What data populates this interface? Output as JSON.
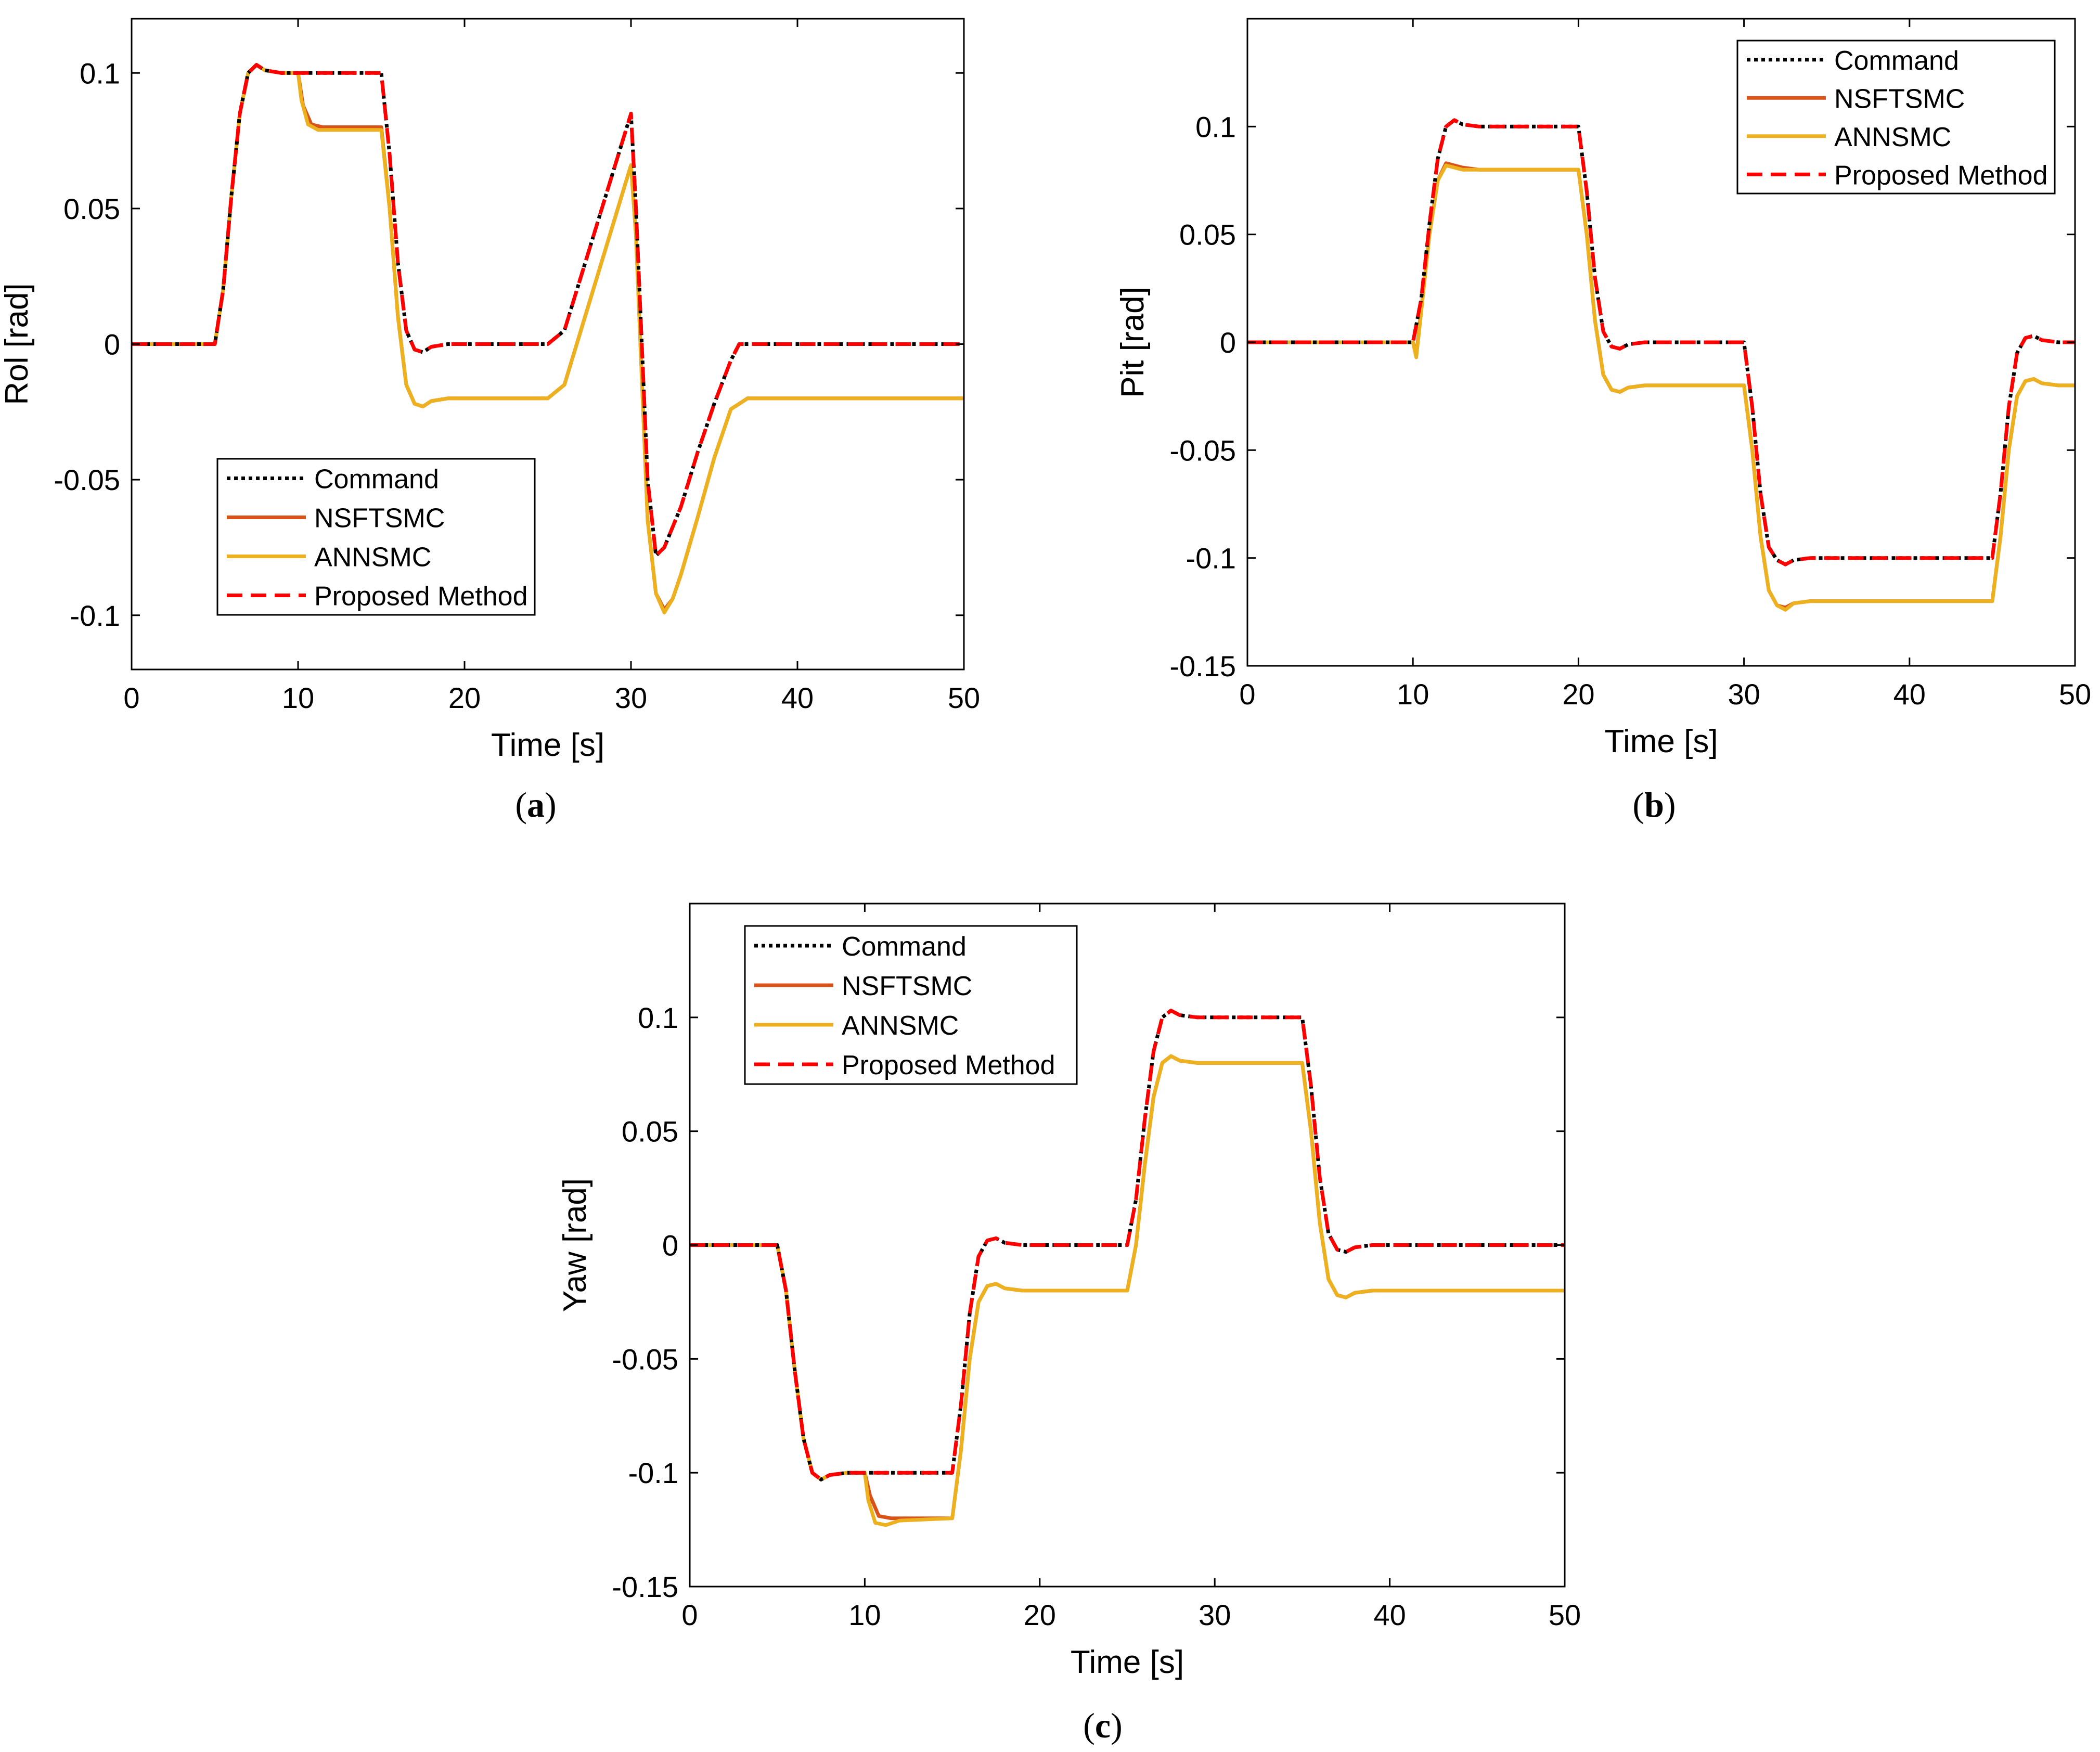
{
  "chart_data": [
    {
      "type": "line",
      "panel_label": "a",
      "xlabel": "Time [s]",
      "ylabel": "Rol [rad]",
      "xlim": [
        0,
        50
      ],
      "ylim": [
        -0.12,
        0.12
      ],
      "xticks": [
        0,
        10,
        20,
        30,
        40,
        50
      ],
      "yticks": [
        -0.1,
        -0.05,
        0,
        0.05,
        0.1
      ],
      "ytick_labels": [
        "-0.1",
        "-0.05",
        "0",
        "0.05",
        "0.1"
      ],
      "legend_position": "bottom-left",
      "series": [
        {
          "name": "Command",
          "color": "#000000",
          "style": "dotted",
          "x": [
            0,
            5,
            5.5,
            6,
            6.5,
            7,
            7.5,
            8,
            9,
            10,
            15,
            15.5,
            16,
            16.5,
            17,
            17.5,
            18,
            19,
            20,
            25,
            26,
            30,
            30.3,
            31,
            31.5,
            32,
            33,
            34,
            35,
            36,
            36.5,
            37,
            40,
            50
          ],
          "y": [
            0,
            0,
            0.02,
            0.055,
            0.085,
            0.1,
            0.103,
            0.101,
            0.1,
            0.1,
            0.1,
            0.07,
            0.03,
            0.005,
            -0.002,
            -0.003,
            -0.001,
            0,
            0,
            0,
            0.005,
            0.085,
            0.05,
            -0.05,
            -0.078,
            -0.075,
            -0.06,
            -0.04,
            -0.022,
            -0.006,
            0,
            0,
            0,
            0
          ]
        },
        {
          "name": "NSFTSMC",
          "color": "#d95319",
          "style": "solid",
          "x": [
            0,
            5,
            5.5,
            6,
            6.5,
            7,
            7.5,
            8,
            9,
            10,
            10.3,
            10.8,
            11.5,
            12,
            15,
            15.5,
            16,
            16.5,
            17,
            17.5,
            18,
            19,
            20,
            25,
            26,
            30,
            30.3,
            31,
            31.5,
            32,
            32.5,
            33,
            34,
            35,
            36,
            37,
            40,
            50
          ],
          "y": [
            0,
            0,
            0.02,
            0.055,
            0.085,
            0.1,
            0.103,
            0.101,
            0.1,
            0.1,
            0.088,
            0.081,
            0.08,
            0.08,
            0.08,
            0.05,
            0.01,
            -0.015,
            -0.022,
            -0.023,
            -0.021,
            -0.02,
            -0.02,
            -0.02,
            -0.015,
            0.066,
            0.04,
            -0.065,
            -0.092,
            -0.098,
            -0.094,
            -0.085,
            -0.064,
            -0.042,
            -0.024,
            -0.02,
            -0.02,
            -0.02
          ]
        },
        {
          "name": "ANNSMC",
          "color": "#edb120",
          "style": "solid",
          "x": [
            0,
            5,
            5.5,
            6,
            6.5,
            7,
            7.5,
            8,
            9,
            10,
            10.2,
            10.6,
            11.2,
            12,
            15,
            15.5,
            16,
            16.5,
            17,
            17.5,
            18,
            19,
            20,
            25,
            26,
            30,
            30.3,
            31,
            31.5,
            32,
            32.5,
            33,
            34,
            35,
            36,
            37,
            40,
            50
          ],
          "y": [
            0,
            0,
            0.02,
            0.055,
            0.085,
            0.1,
            0.103,
            0.101,
            0.1,
            0.1,
            0.09,
            0.081,
            0.079,
            0.079,
            0.079,
            0.05,
            0.01,
            -0.015,
            -0.022,
            -0.023,
            -0.021,
            -0.02,
            -0.02,
            -0.02,
            -0.015,
            0.066,
            0.04,
            -0.065,
            -0.092,
            -0.099,
            -0.094,
            -0.085,
            -0.064,
            -0.042,
            -0.024,
            -0.02,
            -0.02,
            -0.02
          ]
        },
        {
          "name": "Proposed Method",
          "color": "#ff0000",
          "style": "dashed",
          "x": [
            0,
            5,
            5.5,
            6,
            6.5,
            7,
            7.5,
            8,
            9,
            10,
            15,
            15.5,
            16,
            16.5,
            17,
            17.5,
            18,
            19,
            20,
            25,
            26,
            30,
            30.3,
            31,
            31.5,
            32,
            33,
            34,
            35,
            36,
            36.5,
            37,
            40,
            50
          ],
          "y": [
            0,
            0,
            0.02,
            0.055,
            0.085,
            0.1,
            0.103,
            0.101,
            0.1,
            0.1,
            0.1,
            0.07,
            0.03,
            0.005,
            -0.002,
            -0.003,
            -0.001,
            0,
            0,
            0,
            0.005,
            0.085,
            0.05,
            -0.05,
            -0.078,
            -0.075,
            -0.06,
            -0.04,
            -0.022,
            -0.006,
            0,
            0,
            0,
            0
          ]
        }
      ]
    },
    {
      "type": "line",
      "panel_label": "b",
      "xlabel": "Time [s]",
      "ylabel": "Pit [rad]",
      "xlim": [
        0,
        50
      ],
      "ylim": [
        -0.15,
        0.15
      ],
      "xticks": [
        0,
        10,
        20,
        30,
        40,
        50
      ],
      "yticks": [
        -0.15,
        -0.1,
        -0.05,
        0,
        0.05,
        0.1
      ],
      "ytick_labels": [
        "-0.15",
        "-0.1",
        "-0.05",
        "0",
        "0.05",
        "0.1"
      ],
      "legend_position": "top-right",
      "series": [
        {
          "name": "Command",
          "color": "#000000",
          "style": "dotted",
          "x": [
            0,
            10,
            10.5,
            11,
            11.5,
            12,
            12.5,
            13,
            14,
            15,
            20,
            20.5,
            21,
            21.5,
            22,
            22.5,
            23,
            24,
            25,
            30,
            30.5,
            31,
            31.5,
            32,
            32.5,
            33,
            34,
            35,
            45,
            45.5,
            46,
            46.5,
            47,
            47.5,
            48,
            49,
            50
          ],
          "y": [
            0,
            0,
            0.02,
            0.055,
            0.085,
            0.1,
            0.103,
            0.101,
            0.1,
            0.1,
            0.1,
            0.07,
            0.03,
            0.005,
            -0.002,
            -0.003,
            -0.001,
            0,
            0,
            0,
            -0.03,
            -0.07,
            -0.095,
            -0.101,
            -0.103,
            -0.101,
            -0.1,
            -0.1,
            -0.1,
            -0.07,
            -0.03,
            -0.005,
            0.002,
            0.003,
            0.001,
            0,
            0
          ]
        },
        {
          "name": "NSFTSMC",
          "color": "#d95319",
          "style": "solid",
          "x": [
            0,
            10,
            10.2,
            10.5,
            11,
            11.5,
            12,
            12.5,
            13,
            14,
            15,
            20,
            20.5,
            21,
            21.5,
            22,
            22.5,
            23,
            24,
            25,
            30,
            30.5,
            31,
            31.5,
            32,
            32.5,
            33,
            34,
            35,
            45,
            45.5,
            46,
            46.5,
            47,
            47.5,
            48,
            49,
            50
          ],
          "y": [
            0,
            0,
            -0.006,
            0.015,
            0.05,
            0.075,
            0.083,
            0.082,
            0.081,
            0.08,
            0.08,
            0.08,
            0.05,
            0.01,
            -0.015,
            -0.022,
            -0.023,
            -0.021,
            -0.02,
            -0.02,
            -0.02,
            -0.05,
            -0.09,
            -0.115,
            -0.122,
            -0.123,
            -0.121,
            -0.12,
            -0.12,
            -0.12,
            -0.09,
            -0.05,
            -0.025,
            -0.018,
            -0.017,
            -0.019,
            -0.02,
            -0.02
          ]
        },
        {
          "name": "ANNSMC",
          "color": "#edb120",
          "style": "solid",
          "x": [
            0,
            10,
            10.2,
            10.5,
            11,
            11.5,
            12,
            12.5,
            13,
            14,
            15,
            20,
            20.5,
            21,
            21.5,
            22,
            22.5,
            23,
            24,
            25,
            30,
            30.5,
            31,
            31.5,
            32,
            32.5,
            33,
            34,
            35,
            45,
            45.5,
            46,
            46.5,
            47,
            47.5,
            48,
            49,
            50
          ],
          "y": [
            0,
            0,
            -0.007,
            0.014,
            0.05,
            0.075,
            0.082,
            0.081,
            0.08,
            0.08,
            0.08,
            0.08,
            0.05,
            0.01,
            -0.015,
            -0.022,
            -0.023,
            -0.021,
            -0.02,
            -0.02,
            -0.02,
            -0.05,
            -0.09,
            -0.115,
            -0.122,
            -0.124,
            -0.121,
            -0.12,
            -0.12,
            -0.12,
            -0.09,
            -0.05,
            -0.025,
            -0.018,
            -0.017,
            -0.019,
            -0.02,
            -0.02
          ]
        },
        {
          "name": "Proposed Method",
          "color": "#ff0000",
          "style": "dashed",
          "x": [
            0,
            10,
            10.5,
            11,
            11.5,
            12,
            12.5,
            13,
            14,
            15,
            20,
            20.5,
            21,
            21.5,
            22,
            22.5,
            23,
            24,
            25,
            30,
            30.5,
            31,
            31.5,
            32,
            32.5,
            33,
            34,
            35,
            45,
            45.5,
            46,
            46.5,
            47,
            47.5,
            48,
            49,
            50
          ],
          "y": [
            0,
            0,
            0.02,
            0.055,
            0.085,
            0.1,
            0.103,
            0.101,
            0.1,
            0.1,
            0.1,
            0.07,
            0.03,
            0.005,
            -0.002,
            -0.003,
            -0.001,
            0,
            0,
            0,
            -0.03,
            -0.07,
            -0.095,
            -0.101,
            -0.103,
            -0.101,
            -0.1,
            -0.1,
            -0.1,
            -0.07,
            -0.03,
            -0.005,
            0.002,
            0.003,
            0.001,
            0,
            0
          ]
        }
      ]
    },
    {
      "type": "line",
      "panel_label": "c",
      "xlabel": "Time [s]",
      "ylabel": "Yaw [rad]",
      "xlim": [
        0,
        50
      ],
      "ylim": [
        -0.15,
        0.15
      ],
      "xticks": [
        0,
        10,
        20,
        30,
        40,
        50
      ],
      "yticks": [
        -0.15,
        -0.1,
        -0.05,
        0,
        0.05,
        0.1
      ],
      "ytick_labels": [
        "-0.15",
        "-0.1",
        "-0.05",
        "0",
        "0.05",
        "0.1"
      ],
      "legend_position": "top-left",
      "series": [
        {
          "name": "Command",
          "color": "#000000",
          "style": "dotted",
          "x": [
            0,
            5,
            5.5,
            6,
            6.5,
            7,
            7.5,
            8,
            9,
            10,
            15,
            15.5,
            16,
            16.5,
            17,
            17.5,
            18,
            19,
            20,
            25,
            25.5,
            26,
            26.5,
            27,
            27.5,
            28,
            29,
            30,
            35,
            35.5,
            36,
            36.5,
            37,
            37.5,
            38,
            39,
            40,
            50
          ],
          "y": [
            0,
            0,
            -0.02,
            -0.055,
            -0.085,
            -0.1,
            -0.103,
            -0.101,
            -0.1,
            -0.1,
            -0.1,
            -0.07,
            -0.03,
            -0.005,
            0.002,
            0.003,
            0.001,
            0,
            0,
            0,
            0.02,
            0.055,
            0.085,
            0.1,
            0.103,
            0.101,
            0.1,
            0.1,
            0.1,
            0.07,
            0.03,
            0.005,
            -0.002,
            -0.003,
            -0.001,
            0,
            0,
            0
          ]
        },
        {
          "name": "NSFTSMC",
          "color": "#d95319",
          "style": "solid",
          "x": [
            0,
            5,
            5.5,
            6,
            6.5,
            7,
            7.5,
            8,
            9,
            10,
            10.3,
            10.8,
            11.5,
            12,
            15,
            15.5,
            16,
            16.5,
            17,
            17.5,
            18,
            19,
            20,
            25,
            25.5,
            26,
            26.5,
            27,
            27.5,
            28,
            29,
            30,
            35,
            35.5,
            36,
            36.5,
            37,
            37.5,
            38,
            39,
            40,
            50
          ],
          "y": [
            0,
            0,
            -0.02,
            -0.055,
            -0.085,
            -0.1,
            -0.103,
            -0.101,
            -0.1,
            -0.1,
            -0.11,
            -0.119,
            -0.12,
            -0.12,
            -0.12,
            -0.09,
            -0.05,
            -0.025,
            -0.018,
            -0.017,
            -0.019,
            -0.02,
            -0.02,
            -0.02,
            0.0,
            0.035,
            0.065,
            0.08,
            0.083,
            0.081,
            0.08,
            0.08,
            0.08,
            0.05,
            0.01,
            -0.015,
            -0.022,
            -0.023,
            -0.021,
            -0.02,
            -0.02,
            -0.02
          ]
        },
        {
          "name": "ANNSMC",
          "color": "#edb120",
          "style": "solid",
          "x": [
            0,
            5,
            5.5,
            6,
            6.5,
            7,
            7.5,
            8,
            9,
            10,
            10.2,
            10.6,
            11.2,
            12,
            15,
            15.5,
            16,
            16.5,
            17,
            17.5,
            18,
            19,
            20,
            25,
            25.5,
            26,
            26.5,
            27,
            27.5,
            28,
            29,
            30,
            35,
            35.5,
            36,
            36.5,
            37,
            37.5,
            38,
            39,
            40,
            50
          ],
          "y": [
            0,
            0,
            -0.02,
            -0.055,
            -0.085,
            -0.1,
            -0.103,
            -0.101,
            -0.1,
            -0.1,
            -0.112,
            -0.122,
            -0.123,
            -0.121,
            -0.12,
            -0.09,
            -0.05,
            -0.025,
            -0.018,
            -0.017,
            -0.019,
            -0.02,
            -0.02,
            -0.02,
            0.0,
            0.035,
            0.065,
            0.08,
            0.083,
            0.081,
            0.08,
            0.08,
            0.08,
            0.05,
            0.01,
            -0.015,
            -0.022,
            -0.023,
            -0.021,
            -0.02,
            -0.02,
            -0.02
          ]
        },
        {
          "name": "Proposed Method",
          "color": "#ff0000",
          "style": "dashed",
          "x": [
            0,
            5,
            5.5,
            6,
            6.5,
            7,
            7.5,
            8,
            9,
            10,
            15,
            15.5,
            16,
            16.5,
            17,
            17.5,
            18,
            19,
            20,
            25,
            25.5,
            26,
            26.5,
            27,
            27.5,
            28,
            29,
            30,
            35,
            35.5,
            36,
            36.5,
            37,
            37.5,
            38,
            39,
            40,
            50
          ],
          "y": [
            0,
            0,
            -0.02,
            -0.055,
            -0.085,
            -0.1,
            -0.103,
            -0.101,
            -0.1,
            -0.1,
            -0.1,
            -0.07,
            -0.03,
            -0.005,
            0.002,
            0.003,
            0.001,
            0,
            0,
            0,
            0.02,
            0.055,
            0.085,
            0.1,
            0.103,
            0.101,
            0.1,
            0.1,
            0.1,
            0.07,
            0.03,
            0.005,
            -0.002,
            -0.003,
            -0.001,
            0,
            0,
            0
          ]
        }
      ]
    }
  ]
}
